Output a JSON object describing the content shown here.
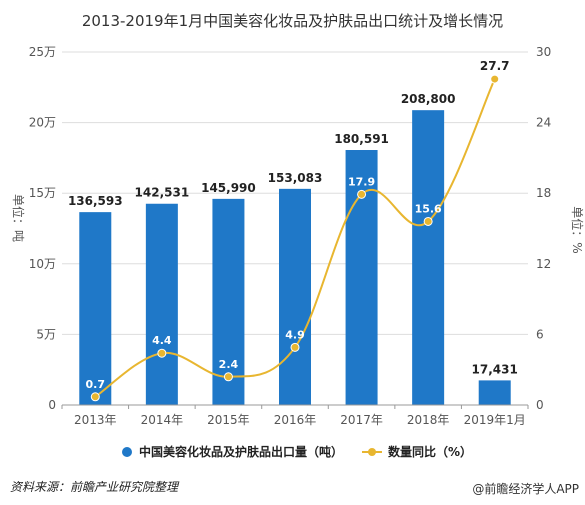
{
  "title": "2013-2019年1月中国美容化妆品及护肤品出口统计及增长情况",
  "source": "资料来源：前瞻产业研究院整理",
  "credit": "@前瞻经济学人APP",
  "colors": {
    "bar": "#1f78c8",
    "line": "#e8b630",
    "grid": "#dddddd"
  },
  "chart_data": {
    "type": "bar",
    "categories": [
      "2013年",
      "2014年",
      "2015年",
      "2016年",
      "2017年",
      "2018年",
      "2019年1月"
    ],
    "series": [
      {
        "name": "中国美容化妆品及护肤品出口量（吨）",
        "type": "bar",
        "axis": "left",
        "values": [
          136593,
          142531,
          145990,
          153083,
          180591,
          208800,
          17431
        ],
        "labels": [
          "136,593",
          "142,531",
          "145,990",
          "153,083",
          "180,591",
          "208,800",
          "17,431"
        ]
      },
      {
        "name": "数量同比（%）",
        "type": "line",
        "axis": "right",
        "values": [
          0.7,
          4.4,
          2.4,
          4.9,
          17.9,
          15.6,
          27.7
        ],
        "labels": [
          "0.7",
          "4.4",
          "2.4",
          "4.9",
          "17.9",
          "15.6",
          "27.7"
        ]
      }
    ],
    "y_left": {
      "label": "单位：吨",
      "ylim": [
        0,
        250000
      ],
      "ticks": [
        0,
        50000,
        100000,
        150000,
        200000,
        250000
      ],
      "tick_labels": [
        "0",
        "5万",
        "10万",
        "15万",
        "20万",
        "25万"
      ]
    },
    "y_right": {
      "label": "单位：%",
      "ylim": [
        0,
        30
      ],
      "ticks": [
        0,
        6,
        12,
        18,
        24,
        30
      ],
      "tick_labels": [
        "0",
        "6",
        "12",
        "18",
        "24",
        "30"
      ]
    },
    "grid": true,
    "legend_position": "bottom"
  }
}
